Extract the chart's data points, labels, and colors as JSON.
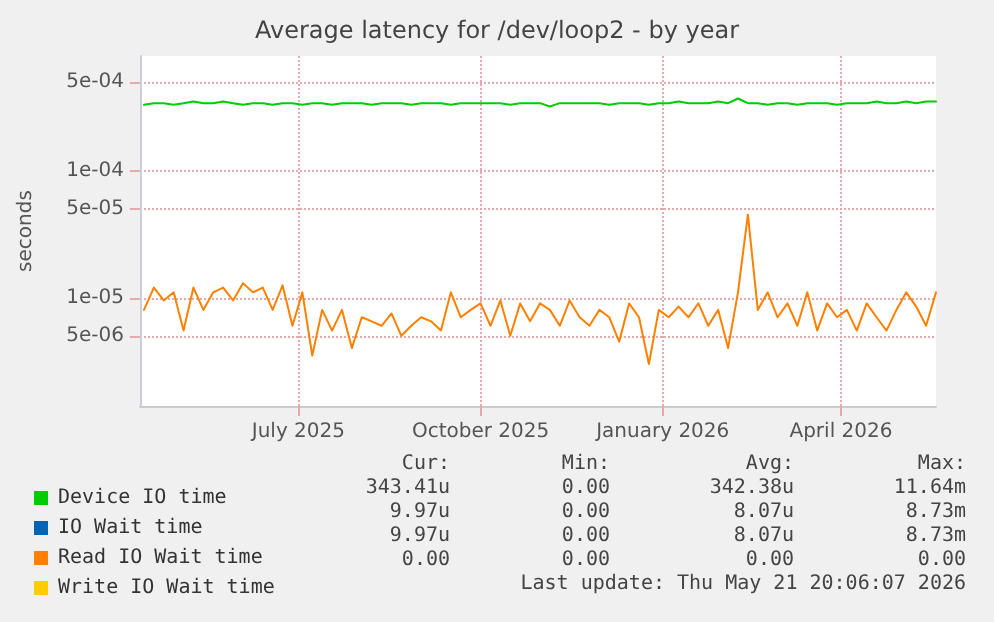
{
  "chart_data": {
    "type": "line",
    "title": "Average latency for /dev/loop2 - by year",
    "ylabel": "seconds",
    "log": "y",
    "grid": true,
    "legend": "bottom",
    "marker": "none",
    "line_style": "solid",
    "ylim": [
      1.4e-06,
      0.0008
    ],
    "yticks": [
      {
        "value": 5e-06,
        "label": "5e-06"
      },
      {
        "value": 1e-05,
        "label": "1e-05"
      },
      {
        "value": 5e-05,
        "label": "5e-05"
      },
      {
        "value": 0.0001,
        "label": "1e-04"
      },
      {
        "value": 0.0005,
        "label": "5e-04"
      }
    ],
    "xlim": [
      "2025-04-12",
      "2026-05-19"
    ],
    "xticks": [
      {
        "value": "2025-07-01",
        "label": "July 2025"
      },
      {
        "value": "2025-10-01",
        "label": "October 2025"
      },
      {
        "value": "2026-01-01",
        "label": "January 2026"
      },
      {
        "value": "2026-04-01",
        "label": "April 2026"
      }
    ],
    "x": [
      "2025-04-14",
      "2025-04-19",
      "2025-04-24",
      "2025-04-29",
      "2025-05-04",
      "2025-05-09",
      "2025-05-14",
      "2025-05-19",
      "2025-05-24",
      "2025-05-29",
      "2025-06-03",
      "2025-06-08",
      "2025-06-13",
      "2025-06-18",
      "2025-06-23",
      "2025-06-28",
      "2025-07-03",
      "2025-07-08",
      "2025-07-13",
      "2025-07-18",
      "2025-07-23",
      "2025-07-28",
      "2025-08-02",
      "2025-08-07",
      "2025-08-12",
      "2025-08-17",
      "2025-08-22",
      "2025-08-27",
      "2025-09-01",
      "2025-09-06",
      "2025-09-11",
      "2025-09-16",
      "2025-09-21",
      "2025-09-26",
      "2025-10-01",
      "2025-10-06",
      "2025-10-11",
      "2025-10-16",
      "2025-10-21",
      "2025-10-26",
      "2025-10-31",
      "2025-11-05",
      "2025-11-10",
      "2025-11-15",
      "2025-11-20",
      "2025-11-25",
      "2025-11-30",
      "2025-12-05",
      "2025-12-10",
      "2025-12-15",
      "2025-12-20",
      "2025-12-25",
      "2025-12-30",
      "2026-01-04",
      "2026-01-09",
      "2026-01-14",
      "2026-01-19",
      "2026-01-24",
      "2026-01-29",
      "2026-02-03",
      "2026-02-08",
      "2026-02-13",
      "2026-02-18",
      "2026-02-23",
      "2026-02-28",
      "2026-03-05",
      "2026-03-10",
      "2026-03-15",
      "2026-03-20",
      "2026-03-25",
      "2026-03-30",
      "2026-04-04",
      "2026-04-09",
      "2026-04-14",
      "2026-04-19",
      "2026-04-24",
      "2026-04-29",
      "2026-05-04",
      "2026-05-09",
      "2026-05-14",
      "2026-05-19"
    ],
    "series": [
      {
        "name": "Device IO time",
        "color": "#00cc00",
        "values": [
          0.00033,
          0.00034,
          0.00034,
          0.00033,
          0.00034,
          0.00035,
          0.00034,
          0.00034,
          0.00035,
          0.00034,
          0.00033,
          0.00034,
          0.00034,
          0.00033,
          0.00034,
          0.00034,
          0.00033,
          0.00034,
          0.00034,
          0.00033,
          0.00034,
          0.00034,
          0.00034,
          0.00033,
          0.00034,
          0.00034,
          0.00034,
          0.00033,
          0.00034,
          0.00034,
          0.00034,
          0.00033,
          0.00034,
          0.00034,
          0.00034,
          0.00034,
          0.00034,
          0.00033,
          0.00034,
          0.00034,
          0.00034,
          0.00032,
          0.00034,
          0.00034,
          0.00034,
          0.00034,
          0.00034,
          0.00033,
          0.00034,
          0.00034,
          0.00034,
          0.00033,
          0.00034,
          0.00034,
          0.00035,
          0.00034,
          0.00034,
          0.00034,
          0.00035,
          0.00034,
          0.00037,
          0.00034,
          0.00034,
          0.00033,
          0.00034,
          0.00034,
          0.00033,
          0.00034,
          0.00034,
          0.00034,
          0.00033,
          0.00034,
          0.00034,
          0.00034,
          0.00035,
          0.00034,
          0.00034,
          0.00035,
          0.00034,
          0.00035,
          0.00035
        ]
      },
      {
        "name": "IO Wait time",
        "color": "#0066b3",
        "values": [
          null,
          null,
          null,
          null,
          null,
          null,
          null,
          null,
          null,
          null,
          null,
          null,
          null,
          null,
          null,
          null,
          null,
          null,
          null,
          null,
          null,
          null,
          null,
          null,
          null,
          null,
          null,
          null,
          null,
          null,
          null,
          null,
          null,
          null,
          null,
          null,
          null,
          null,
          null,
          null,
          null,
          null,
          null,
          null,
          null,
          null,
          null,
          null,
          null,
          null,
          null,
          null,
          null,
          null,
          null,
          null,
          null,
          null,
          null,
          null,
          null,
          null,
          null,
          null,
          null,
          null,
          null,
          null,
          null,
          null,
          null,
          null,
          null,
          null,
          null,
          null,
          null,
          null,
          null,
          null,
          null
        ]
      },
      {
        "name": "Read IO Wait time",
        "color": "#ff8000",
        "values": [
          8e-06,
          1.2e-05,
          9.5e-06,
          1.1e-05,
          5.5e-06,
          1.2e-05,
          8e-06,
          1.1e-05,
          1.2e-05,
          9.5e-06,
          1.3e-05,
          1.1e-05,
          1.2e-05,
          8e-06,
          1.25e-05,
          6e-06,
          1.1e-05,
          3.5e-06,
          8e-06,
          5.5e-06,
          8e-06,
          4e-06,
          7e-06,
          6.5e-06,
          6e-06,
          7.5e-06,
          5e-06,
          6e-06,
          7e-06,
          6.5e-06,
          5.5e-06,
          1.1e-05,
          7e-06,
          8e-06,
          9e-06,
          6e-06,
          9.5e-06,
          5e-06,
          9e-06,
          6.5e-06,
          9e-06,
          8e-06,
          6e-06,
          9.5e-06,
          7e-06,
          6e-06,
          8e-06,
          7e-06,
          4.5e-06,
          9e-06,
          7e-06,
          3e-06,
          8e-06,
          7e-06,
          8.5e-06,
          7e-06,
          9e-06,
          6e-06,
          8e-06,
          4e-06,
          1.1e-05,
          4.5e-05,
          8e-06,
          1.1e-05,
          7e-06,
          9e-06,
          6e-06,
          1.1e-05,
          5.5e-06,
          9e-06,
          7e-06,
          8e-06,
          5.5e-06,
          9e-06,
          7e-06,
          5.5e-06,
          8e-06,
          1.1e-05,
          8.5e-06,
          6e-06,
          1.1e-05
        ]
      },
      {
        "name": "Write IO Wait time",
        "color": "#ffcc00",
        "values": [
          null,
          null,
          null,
          null,
          null,
          null,
          null,
          null,
          null,
          null,
          null,
          null,
          null,
          null,
          null,
          null,
          null,
          null,
          null,
          null,
          null,
          null,
          null,
          null,
          null,
          null,
          null,
          null,
          null,
          null,
          null,
          null,
          null,
          null,
          null,
          null,
          null,
          null,
          null,
          null,
          null,
          null,
          null,
          null,
          null,
          null,
          null,
          null,
          null,
          null,
          null,
          null,
          null,
          null,
          null,
          null,
          null,
          null,
          null,
          null,
          null,
          null,
          null,
          null,
          null,
          null,
          null,
          null,
          null,
          null,
          null,
          null,
          null,
          null,
          null,
          null,
          null,
          null,
          null,
          null,
          null
        ]
      }
    ],
    "annotations": [
      "Cur:",
      "Min:",
      "Avg:",
      "Max:",
      "343.41u",
      "0.00",
      "342.38u",
      "11.64m",
      "9.97u",
      "0.00",
      "8.07u",
      "8.73m",
      "9.97u",
      "0.00",
      "8.07u",
      "8.73m",
      "0.00",
      "0.00",
      "0.00",
      "0.00",
      "Last update: Thu May 21 20:06:07 2026"
    ]
  }
}
